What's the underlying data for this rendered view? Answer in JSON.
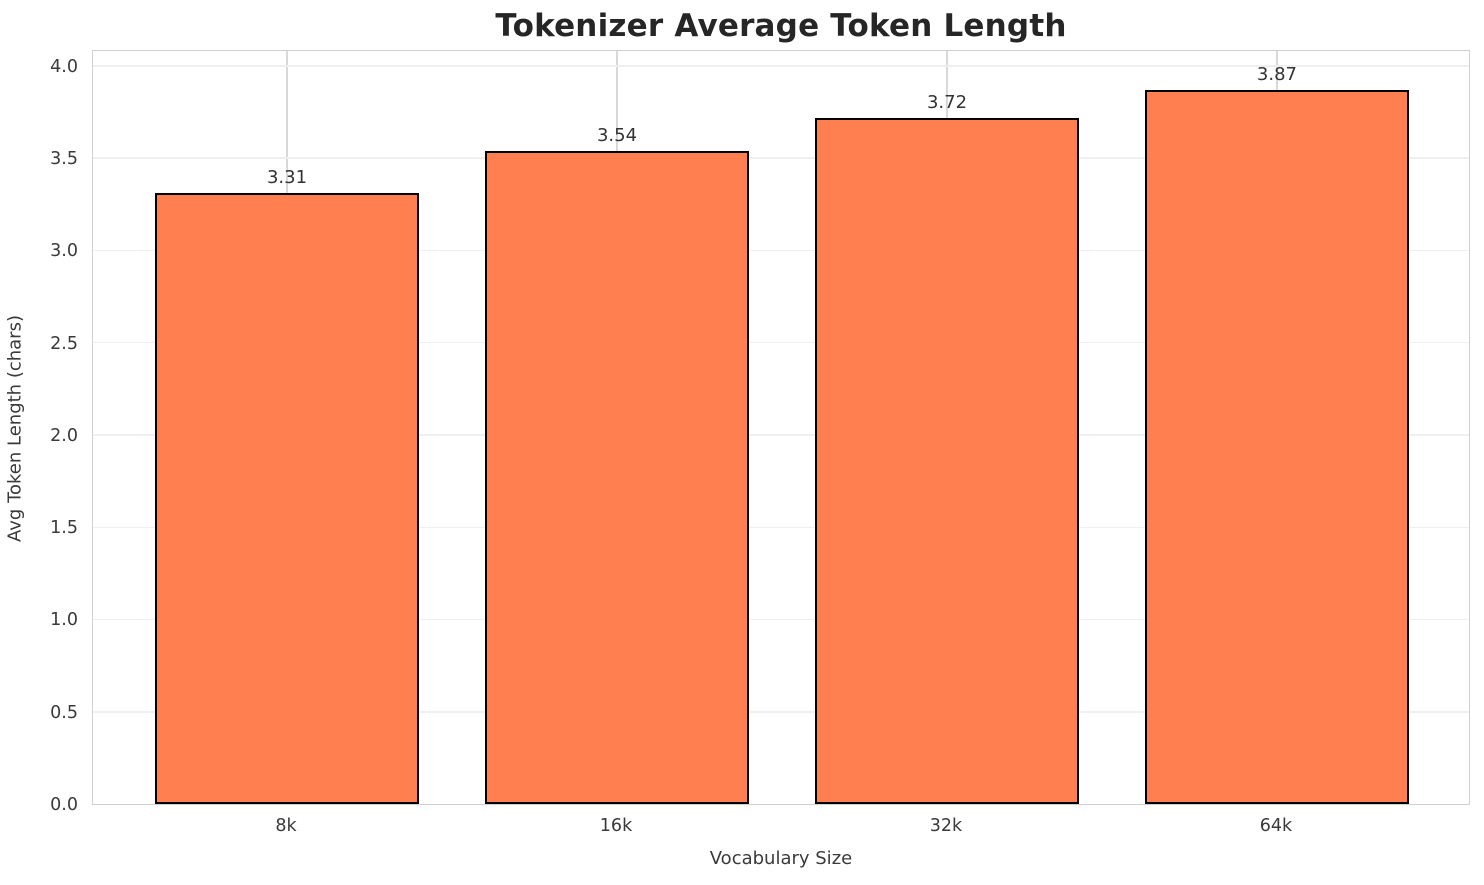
{
  "chart_data": {
    "type": "bar",
    "title": "Tokenizer Average Token Length",
    "xlabel": "Vocabulary Size",
    "ylabel": "Avg Token Length (chars)",
    "categories": [
      "8k",
      "16k",
      "32k",
      "64k"
    ],
    "values": [
      3.31,
      3.54,
      3.72,
      3.87
    ],
    "bar_labels": [
      "3.31",
      "3.54",
      "3.72",
      "3.87"
    ],
    "yticks": [
      0.0,
      0.5,
      1.0,
      1.5,
      2.0,
      2.5,
      3.0,
      3.5,
      4.0
    ],
    "ytick_labels": [
      "0.0",
      "0.5",
      "1.0",
      "1.5",
      "2.0",
      "2.5",
      "3.0",
      "3.5",
      "4.0"
    ],
    "ylim": [
      0,
      4.092
    ],
    "xlim": [
      -0.588,
      3.588
    ],
    "bar_width": 0.8,
    "grid": true,
    "legend_position": "none",
    "colors": {
      "bar_fill": "#ff7f50",
      "bar_edge": "#000000",
      "grid_horizontal": "#efefef",
      "grid_vertical": "#d9d9d9",
      "spine": "#d0d0d0",
      "title_text": "#262626",
      "tick_text": "#3a3a3a"
    }
  }
}
